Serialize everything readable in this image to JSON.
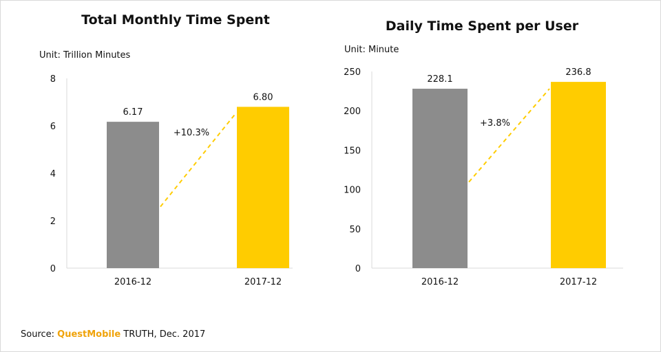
{
  "source": {
    "prefix": "Source: ",
    "brand": "QuestMobile",
    "suffix": " TRUTH, Dec. 2017",
    "brand_color": "#f0a30a"
  },
  "chart_data": [
    {
      "type": "bar",
      "title": "Total Monthly Time Spent",
      "unit": "Unit: Trillion Minutes",
      "categories": [
        "2016-12",
        "2017-12"
      ],
      "values": [
        6.17,
        6.8
      ],
      "data_labels": [
        "6.17",
        "6.80"
      ],
      "bar_colors": [
        "#8c8c8c",
        "#ffcc00"
      ],
      "ylim": [
        0,
        8
      ],
      "yticks": [
        0,
        2,
        4,
        6,
        8
      ],
      "annotation": {
        "text": "+10.3%",
        "color": "#ffcc00",
        "style": "dashed"
      },
      "grid": false,
      "legend": "none"
    },
    {
      "type": "bar",
      "title": "Daily Time Spent per User",
      "unit": "Unit: Minute",
      "categories": [
        "2016-12",
        "2017-12"
      ],
      "values": [
        228.1,
        236.8
      ],
      "data_labels": [
        "228.1",
        "236.8"
      ],
      "bar_colors": [
        "#8c8c8c",
        "#ffcc00"
      ],
      "ylim": [
        0,
        250
      ],
      "yticks": [
        0,
        50,
        100,
        150,
        200,
        250
      ],
      "annotation": {
        "text": "+3.8%",
        "color": "#ffcc00",
        "style": "dashed"
      },
      "grid": false,
      "legend": "none"
    }
  ]
}
